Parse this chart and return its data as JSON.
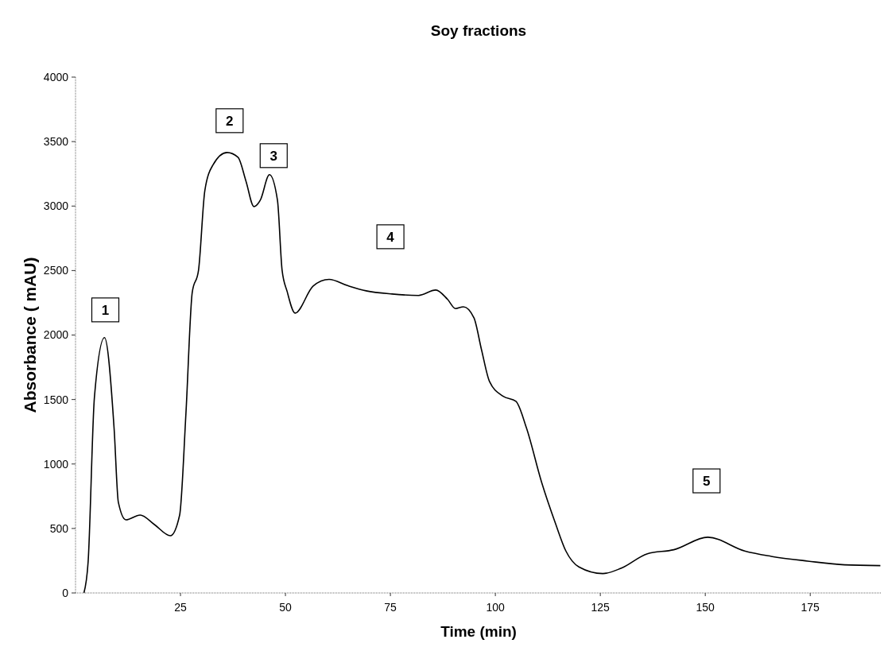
{
  "chart_data": {
    "type": "line",
    "title": "Soy fractions",
    "xlabel": "Time (min)",
    "ylabel": "Absorbance ( mAU)",
    "xlim": [
      0,
      192
    ],
    "xticks": [
      25,
      50,
      75,
      100,
      125,
      150,
      175
    ],
    "ylim": [
      0,
      4000
    ],
    "yticks": [
      0,
      500,
      1000,
      1500,
      2000,
      2500,
      3000,
      3500,
      4000
    ],
    "grid": false,
    "marker": "none",
    "line_style": "solid",
    "series": [
      {
        "color": "#000000",
        "x": [
          2,
          3,
          4.5,
          6.9,
          9.2,
          10.2,
          12,
          15.4,
          18.8,
          22.6,
          24.8,
          26.3,
          27.8,
          29.3,
          30.8,
          32.7,
          36.1,
          38.7,
          40.6,
          42.5,
          44,
          46.2,
          48.1,
          49.2,
          50.4,
          52.3,
          56.6,
          60.4,
          64.8,
          69.2,
          75.4,
          81.7,
          85.8,
          88.6,
          90.5,
          92.4,
          94.9,
          96.7,
          98.6,
          101.8,
          104.9,
          107.4,
          111,
          114.3,
          116.8,
          119.9,
          125.6,
          129.9,
          136.2,
          142.5,
          150.6,
          159.4,
          165.7,
          174.4,
          183.2,
          191.7
        ],
        "values": [
          0,
          240,
          1517,
          1980,
          1270,
          703,
          567,
          604,
          530,
          444,
          604,
          1393,
          2330,
          2503,
          3120,
          3317,
          3415,
          3378,
          3193,
          2996,
          3045,
          3243,
          3045,
          2503,
          2338,
          2170,
          2380,
          2431,
          2383,
          2343,
          2318,
          2307,
          2349,
          2277,
          2205,
          2219,
          2133,
          1886,
          1640,
          1526,
          1486,
          1280,
          860,
          541,
          325,
          202,
          150,
          191,
          304,
          335,
          432,
          325,
          284,
          247,
          218,
          212
        ]
      }
    ],
    "annotations": [
      {
        "text": "1",
        "x": 7.1,
        "y": 2195
      },
      {
        "text": "2",
        "x": 36.7,
        "y": 3662
      },
      {
        "text": "3",
        "x": 47.2,
        "y": 3391
      },
      {
        "text": "4",
        "x": 75,
        "y": 2762
      },
      {
        "text": "5",
        "x": 150.3,
        "y": 869
      }
    ]
  }
}
